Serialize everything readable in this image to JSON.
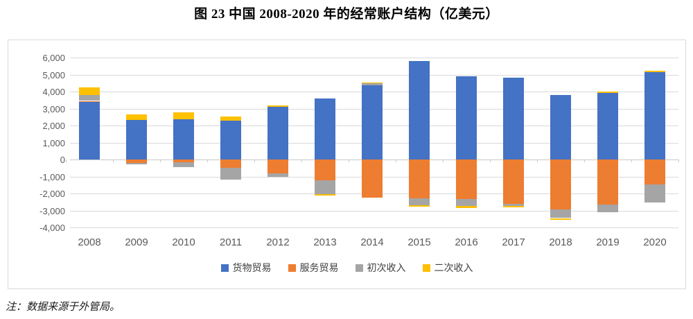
{
  "title": "图 23 中国 2008-2020 年的经常账户结构（亿美元）",
  "note": "注：数据来源于外管局。",
  "colors": {
    "goods": "#4472C4",
    "services": "#ED7D31",
    "primary_income": "#A5A5A5",
    "secondary_income": "#FFC000",
    "gridline": "#D9D9D9",
    "axis_text": "#595959"
  },
  "chart_data": {
    "type": "bar",
    "stacked": true,
    "title": "图 23 中国 2008-2020 年的经常账户结构（亿美元）",
    "categories": [
      "2008",
      "2009",
      "2010",
      "2011",
      "2012",
      "2013",
      "2014",
      "2015",
      "2016",
      "2017",
      "2018",
      "2019",
      "2020"
    ],
    "series": [
      {
        "name": "货物贸易",
        "color": "#4472C4",
        "values": [
          3400,
          2330,
          2380,
          2280,
          3100,
          3590,
          4350,
          5780,
          4900,
          4800,
          3800,
          3910,
          5130
        ]
      },
      {
        "name": "服务贸易",
        "color": "#ED7D31",
        "values": [
          50,
          -200,
          -180,
          -470,
          -830,
          -1240,
          -2250,
          -2300,
          -2330,
          -2600,
          -2930,
          -2660,
          -1450
        ]
      },
      {
        "name": "初次收入",
        "color": "#A5A5A5",
        "values": [
          350,
          -90,
          -270,
          -730,
          -200,
          -800,
          150,
          -390,
          -420,
          -130,
          -520,
          -450,
          -1100
        ]
      },
      {
        "name": "二次收入",
        "color": "#FFC000",
        "values": [
          430,
          340,
          380,
          260,
          70,
          -90,
          40,
          -90,
          -90,
          -100,
          -80,
          100,
          90
        ]
      }
    ],
    "ylim": [
      -4000,
      6000
    ],
    "ytick_step": 1000,
    "y_tick_labels": [
      "6,000",
      "5,000",
      "4,000",
      "3,000",
      "2,000",
      "1,000",
      "0",
      "-1,000",
      "-2,000",
      "-3,000",
      "-4,000"
    ],
    "y_tick_values": [
      6000,
      5000,
      4000,
      3000,
      2000,
      1000,
      0,
      -1000,
      -2000,
      -3000,
      -4000
    ],
    "xlabel": "",
    "ylabel": "",
    "grid": true,
    "legend_position": "bottom"
  }
}
